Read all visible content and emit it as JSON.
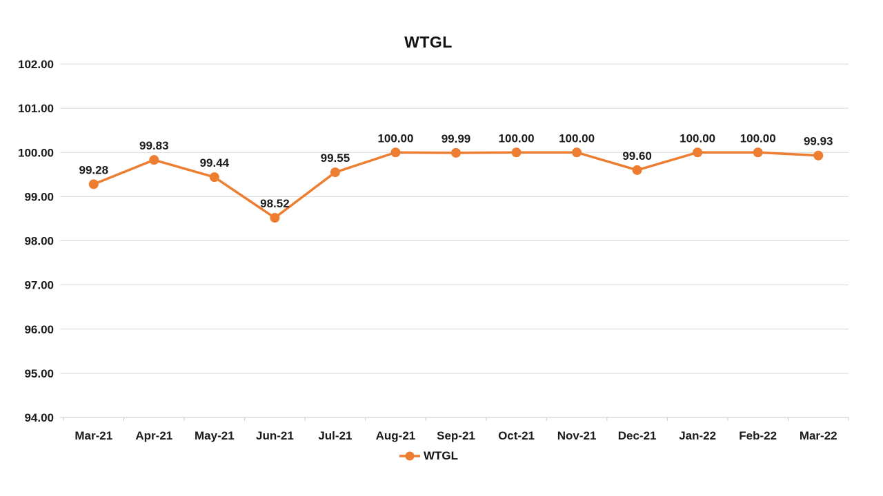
{
  "chart_data": {
    "type": "line",
    "title": "WTGL",
    "categories": [
      "Mar-21",
      "Apr-21",
      "May-21",
      "Jun-21",
      "Jul-21",
      "Aug-21",
      "Sep-21",
      "Oct-21",
      "Nov-21",
      "Dec-21",
      "Jan-22",
      "Feb-22",
      "Mar-22"
    ],
    "series": [
      {
        "name": "WTGL",
        "values": [
          99.28,
          99.83,
          99.44,
          98.52,
          99.55,
          100.0,
          99.99,
          100.0,
          100.0,
          99.6,
          100.0,
          100.0,
          99.93
        ],
        "value_labels": [
          "99.28",
          "99.83",
          "99.44",
          "98.52",
          "99.55",
          "100.00",
          "99.99",
          "100.00",
          "100.00",
          "99.60",
          "100.00",
          "100.00",
          "99.93"
        ],
        "color": "#ED7D31"
      }
    ],
    "ylim": [
      94,
      102
    ],
    "ytick_step": 1,
    "y_tick_labels": [
      "94.00",
      "95.00",
      "96.00",
      "97.00",
      "98.00",
      "99.00",
      "100.00",
      "101.00",
      "102.00"
    ],
    "grid": true,
    "data_labels": true,
    "legend_position": "bottom"
  },
  "colors": {
    "series": "#ED7D31",
    "gridline": "#D9D9D9",
    "axis_line": "#C9C9C9",
    "text": "#1A1A1A"
  }
}
